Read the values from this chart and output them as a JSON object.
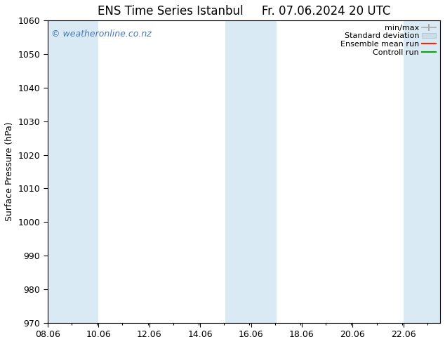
{
  "title": "ENS Time Series Istanbul",
  "title2": "Fr. 07.06.2024 20 UTC",
  "ylabel": "Surface Pressure (hPa)",
  "ylim": [
    970,
    1060
  ],
  "yticks": [
    970,
    980,
    990,
    1000,
    1010,
    1020,
    1030,
    1040,
    1050,
    1060
  ],
  "xlim_start": 8.06,
  "xlim_end": 23.5,
  "xtick_labels": [
    "08.06",
    "10.06",
    "12.06",
    "14.06",
    "16.06",
    "18.06",
    "20.06",
    "22.06"
  ],
  "xtick_positions": [
    8.06,
    10.06,
    12.06,
    14.06,
    16.06,
    18.06,
    20.06,
    22.06
  ],
  "background_color": "#ffffff",
  "plot_bg_color": "#ffffff",
  "shaded_bands": [
    {
      "xmin": 8.06,
      "xmax": 10.06,
      "color": "#daeaf5"
    },
    {
      "xmin": 15.06,
      "xmax": 17.06,
      "color": "#daeaf5"
    },
    {
      "xmin": 22.06,
      "xmax": 24.06,
      "color": "#daeaf5"
    }
  ],
  "watermark_text": "© weatheronline.co.nz",
  "watermark_color": "#4477bb",
  "watermark_fontsize": 9,
  "legend_labels": [
    "min/max",
    "Standard deviation",
    "Ensemble mean run",
    "Controll run"
  ],
  "legend_minmax_color": "#aaaaaa",
  "legend_std_color": "#ccdde8",
  "legend_mean_color": "#ff2200",
  "legend_ctrl_color": "#00aa00",
  "title_fontsize": 12,
  "axis_label_fontsize": 9,
  "tick_fontsize": 9,
  "legend_fontsize": 8
}
